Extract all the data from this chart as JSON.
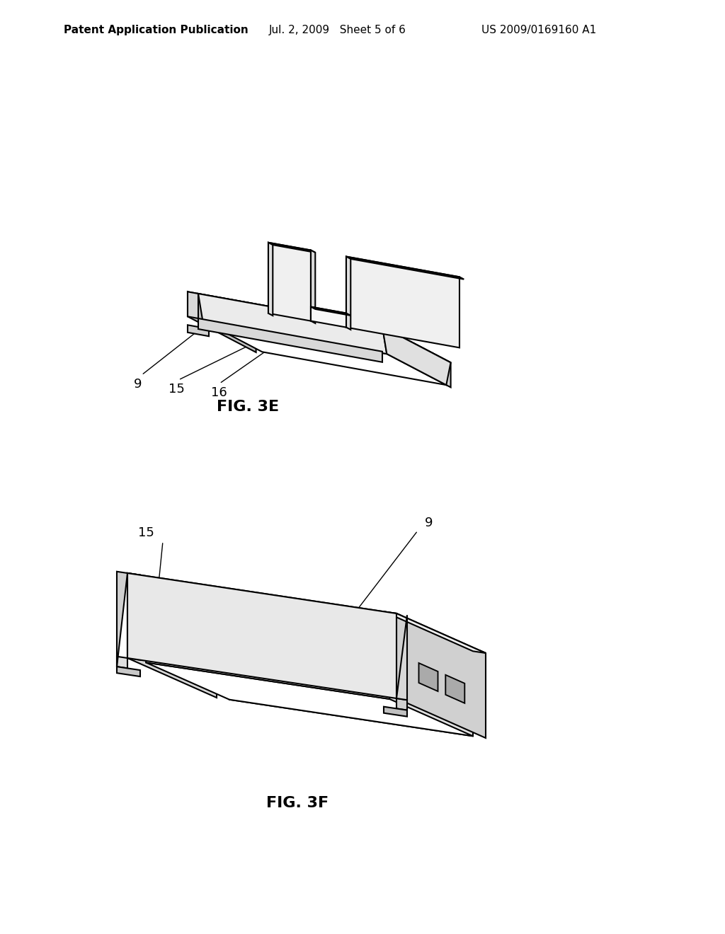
{
  "background_color": "#ffffff",
  "header_left": "Patent Application Publication",
  "header_mid": "Jul. 2, 2009   Sheet 5 of 6",
  "header_right": "US 2009/0169160 A1",
  "fig3e_label": "FIG. 3E",
  "fig3f_label": "FIG. 3F",
  "line_color": "#000000",
  "line_width": 1.5,
  "label_fontsize": 13,
  "header_fontsize": 11,
  "fig_label_fontsize": 16
}
